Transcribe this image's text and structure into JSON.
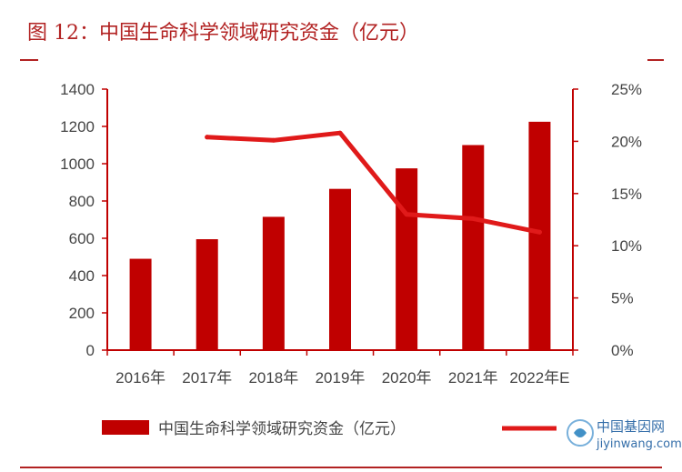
{
  "figure": {
    "title": "图 12：中国生命科学领域研究资金（亿元）"
  },
  "colors": {
    "accent": "#b22222",
    "bar": "#c00000",
    "line": "#e01a1a",
    "axis": "#c00000",
    "text": "#444444"
  },
  "chart_data": {
    "type": "bar",
    "categories": [
      "2016年",
      "2017年",
      "2018年",
      "2019年",
      "2020年",
      "2021年",
      "2022年E"
    ],
    "series": [
      {
        "name": "中国生命科学领域研究资金（亿元）",
        "type": "bar",
        "axis": "left",
        "values": [
          490,
          595,
          715,
          865,
          975,
          1100,
          1225
        ]
      },
      {
        "type": "line",
        "axis": "right",
        "values": [
          null,
          20.4,
          20.1,
          20.8,
          13.0,
          12.6,
          11.3
        ]
      }
    ],
    "ylim_left": [
      0,
      1400
    ],
    "yticks_left": [
      "0",
      "200",
      "400",
      "600",
      "800",
      "1000",
      "1200",
      "1400"
    ],
    "ylim_right": [
      0,
      25
    ],
    "yticks_right": [
      "0%",
      "5%",
      "10%",
      "15%",
      "20%",
      "25%"
    ],
    "grid": false,
    "legend_position": "bottom"
  },
  "legend": {
    "bar_label": "中国生命科学领域研究资金（亿元）"
  },
  "watermark": {
    "site_name": "中国基因网",
    "site_url": "jiyinwang.com"
  }
}
